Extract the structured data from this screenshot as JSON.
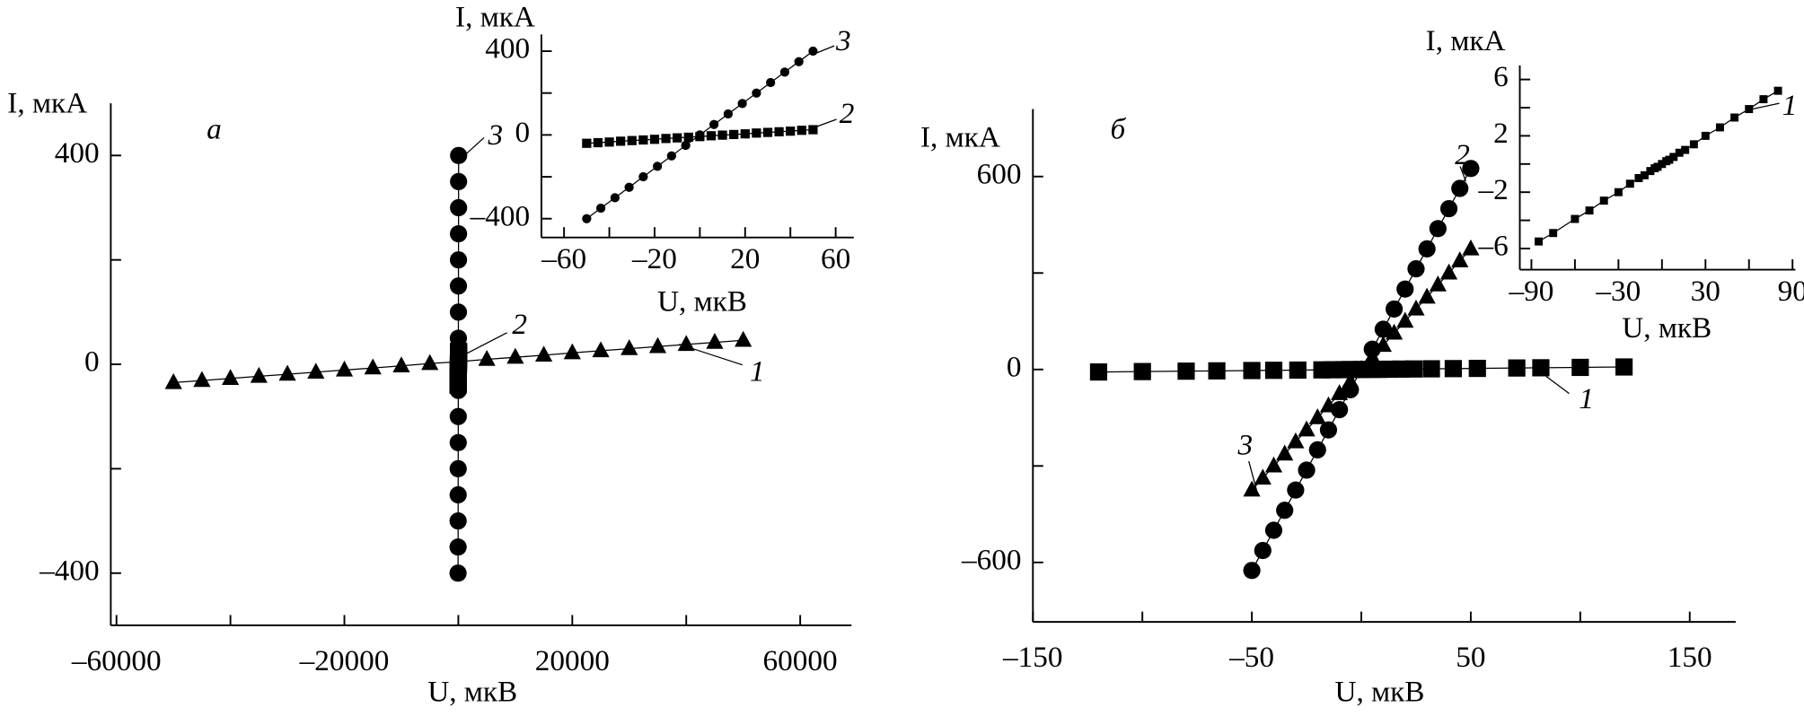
{
  "chart_data": [
    {
      "type": "scatter",
      "panel": "а",
      "xlabel": "U, мкВ",
      "ylabel": "I, мкА",
      "xlim": [
        -61000,
        69000
      ],
      "ylim": [
        -500,
        500
      ],
      "xticks": [
        {
          "value": -60000,
          "label": "–60000"
        },
        {
          "value": -20000,
          "label": "–20000"
        },
        20000,
        60000
      ],
      "xminor": [
        -40000,
        0,
        40000
      ],
      "yticks": [
        {
          "value": -400,
          "label": "–400"
        },
        0,
        400
      ],
      "yminor": [
        -200,
        200
      ],
      "series": [
        {
          "name": "1",
          "color": "#000000",
          "marker": "triangle",
          "x": [
            -50000,
            -45000,
            -40000,
            -35000,
            -30000,
            -25000,
            -20000,
            -15000,
            -10000,
            -5000,
            0,
            5000,
            10000,
            15000,
            20000,
            25000,
            30000,
            35000,
            40000,
            45000,
            50000
          ],
          "values": [
            -35,
            -31,
            -27,
            -23,
            -19,
            -15,
            -11,
            -7,
            -3,
            1.5,
            5,
            9.5,
            13.5,
            17.5,
            22,
            26,
            30,
            34,
            38,
            42,
            46
          ]
        },
        {
          "name": "2",
          "color": "#000000",
          "marker": "square",
          "x": [
            -50,
            -45,
            -40,
            -35,
            -30,
            -25,
            -20,
            -15,
            -10,
            -5,
            0,
            5,
            10,
            15,
            20,
            25,
            30,
            35,
            40,
            45,
            50
          ],
          "values": [
            -40,
            -37,
            -34,
            -30,
            -27,
            -24,
            -21,
            -17,
            -14,
            -11,
            -8,
            -4,
            -1,
            2,
            5,
            9,
            12,
            15,
            18,
            22,
            25
          ]
        },
        {
          "name": "3",
          "color": "#000000",
          "marker": "circle",
          "x": [
            -50,
            -43.75,
            -37.5,
            -31.25,
            -25,
            -18.75,
            -12.5,
            -6.25,
            0,
            6.25,
            12.5,
            18.75,
            25,
            31.25,
            37.5,
            43.75,
            50
          ],
          "values": [
            -400,
            -350,
            -300,
            -250,
            -200,
            -150,
            -100,
            -50,
            0,
            50,
            100,
            150,
            200,
            250,
            300,
            350,
            400
          ]
        }
      ]
    },
    {
      "type": "scatter",
      "xlabel": "U, мкВ",
      "ylabel": "I, мкА",
      "xlim": [
        -70,
        68
      ],
      "ylim": [
        -490,
        480
      ],
      "xticks": [
        {
          "value": -60,
          "label": "–60"
        },
        {
          "value": -20,
          "label": "–20"
        },
        20,
        60
      ],
      "xminor": [
        -40,
        0,
        40
      ],
      "yticks": [
        {
          "value": -400,
          "label": "–400"
        },
        0,
        400
      ],
      "yminor": [
        -200,
        200
      ],
      "series": [
        {
          "name": "2",
          "color": "#000000",
          "marker": "square",
          "x": [
            -50,
            -45,
            -40,
            -35,
            -30,
            -25,
            -20,
            -15,
            -10,
            -5,
            0,
            5,
            10,
            15,
            20,
            25,
            30,
            35,
            40,
            45,
            50
          ],
          "values": [
            -40,
            -37,
            -34,
            -30,
            -27,
            -24,
            -21,
            -17,
            -14,
            -11,
            -8,
            -4,
            -1,
            2,
            5,
            9,
            12,
            15,
            18,
            22,
            25
          ]
        },
        {
          "name": "3",
          "color": "#000000",
          "marker": "circle",
          "x": [
            -50,
            -43.75,
            -37.5,
            -31.25,
            -25,
            -18.75,
            -12.5,
            -6.25,
            0,
            6.25,
            12.5,
            18.75,
            25,
            31.25,
            37.5,
            43.75,
            50
          ],
          "values": [
            -400,
            -350,
            -300,
            -250,
            -200,
            -150,
            -100,
            -50,
            0,
            50,
            100,
            150,
            200,
            250,
            300,
            350,
            400
          ]
        }
      ]
    },
    {
      "type": "scatter",
      "panel": "б",
      "xlabel": "U, мкВ",
      "ylabel": "I, мкА",
      "xlim": [
        -150,
        171
      ],
      "ylim": [
        -785,
        810
      ],
      "xticks": [
        {
          "value": -150,
          "label": "–150"
        },
        {
          "value": -50,
          "label": "–50"
        },
        50,
        150
      ],
      "xminor": [
        -100,
        0,
        100
      ],
      "yticks": [
        {
          "value": -600,
          "label": "–600"
        },
        0,
        600
      ],
      "yminor": [
        -300,
        300
      ],
      "series": [
        {
          "name": "1",
          "color": "#000000",
          "marker": "square",
          "x": [
            -120,
            -100,
            -80,
            -66,
            -50,
            -40,
            -29,
            -18,
            -13,
            -8,
            -5,
            0,
            5,
            8,
            13,
            18,
            24,
            32,
            42,
            53,
            71,
            82,
            100,
            120
          ],
          "values": [
            -7.8,
            -6.5,
            -5.2,
            -4.3,
            -3.3,
            -2.6,
            -1.9,
            -1.2,
            -0.8,
            -0.5,
            -0.3,
            0,
            0.3,
            0.5,
            0.8,
            1.2,
            1.6,
            2.1,
            2.7,
            3.4,
            4.6,
            5.3,
            6.5,
            7.8
          ]
        },
        {
          "name": "2",
          "color": "#000000",
          "marker": "circle",
          "x": [
            -50,
            -45,
            -40,
            -35,
            -30,
            -25,
            -20,
            -15,
            -10,
            -5,
            0,
            5,
            10,
            15,
            20,
            25,
            30,
            35,
            40,
            45,
            50
          ],
          "values": [
            -625,
            -563,
            -500,
            -438,
            -375,
            -313,
            -250,
            -188,
            -125,
            -63,
            0,
            63,
            125,
            188,
            250,
            313,
            375,
            438,
            500,
            563,
            625
          ]
        },
        {
          "name": "3",
          "color": "#000000",
          "marker": "triangle",
          "x": [
            -50,
            -45,
            -40,
            -35,
            -30,
            -25,
            -20,
            -15,
            -10,
            -5,
            0,
            5,
            10,
            15,
            20,
            25,
            30,
            35,
            40,
            45,
            50
          ],
          "values": [
            -375,
            -338,
            -300,
            -263,
            -225,
            -188,
            -150,
            -113,
            -75,
            -38,
            0,
            38,
            75,
            113,
            150,
            188,
            225,
            263,
            300,
            338,
            375
          ]
        }
      ]
    },
    {
      "type": "scatter",
      "xlabel": "U, мкВ",
      "ylabel": "I, мкА",
      "xlim": [
        -98,
        92
      ],
      "ylim": [
        -7.5,
        7
      ],
      "xticks": [
        {
          "value": -90,
          "label": "–90"
        },
        {
          "value": -30,
          "label": "–30"
        },
        30,
        90
      ],
      "xminor": [
        -60,
        0,
        60
      ],
      "yticks": [
        {
          "value": -6,
          "label": "–6"
        },
        {
          "value": -2,
          "label": "–2"
        },
        2,
        6
      ],
      "yminor": [
        -4,
        0,
        4
      ],
      "series": [
        {
          "name": "1",
          "color": "#000000",
          "marker": "square",
          "x": [
            -85,
            -75,
            -60,
            -50,
            -40,
            -30,
            -22,
            -16,
            -12,
            -8,
            -5,
            -3,
            0,
            3,
            5,
            8,
            12,
            16,
            22,
            30,
            40,
            50,
            60,
            70,
            80
          ],
          "values": [
            -5.5,
            -4.9,
            -3.9,
            -3.3,
            -2.6,
            -2.0,
            -1.4,
            -1.0,
            -0.8,
            -0.5,
            -0.3,
            -0.2,
            0,
            0.2,
            0.3,
            0.5,
            0.8,
            1.0,
            1.4,
            2.0,
            2.6,
            3.3,
            3.9,
            4.6,
            5.2
          ]
        }
      ]
    }
  ]
}
